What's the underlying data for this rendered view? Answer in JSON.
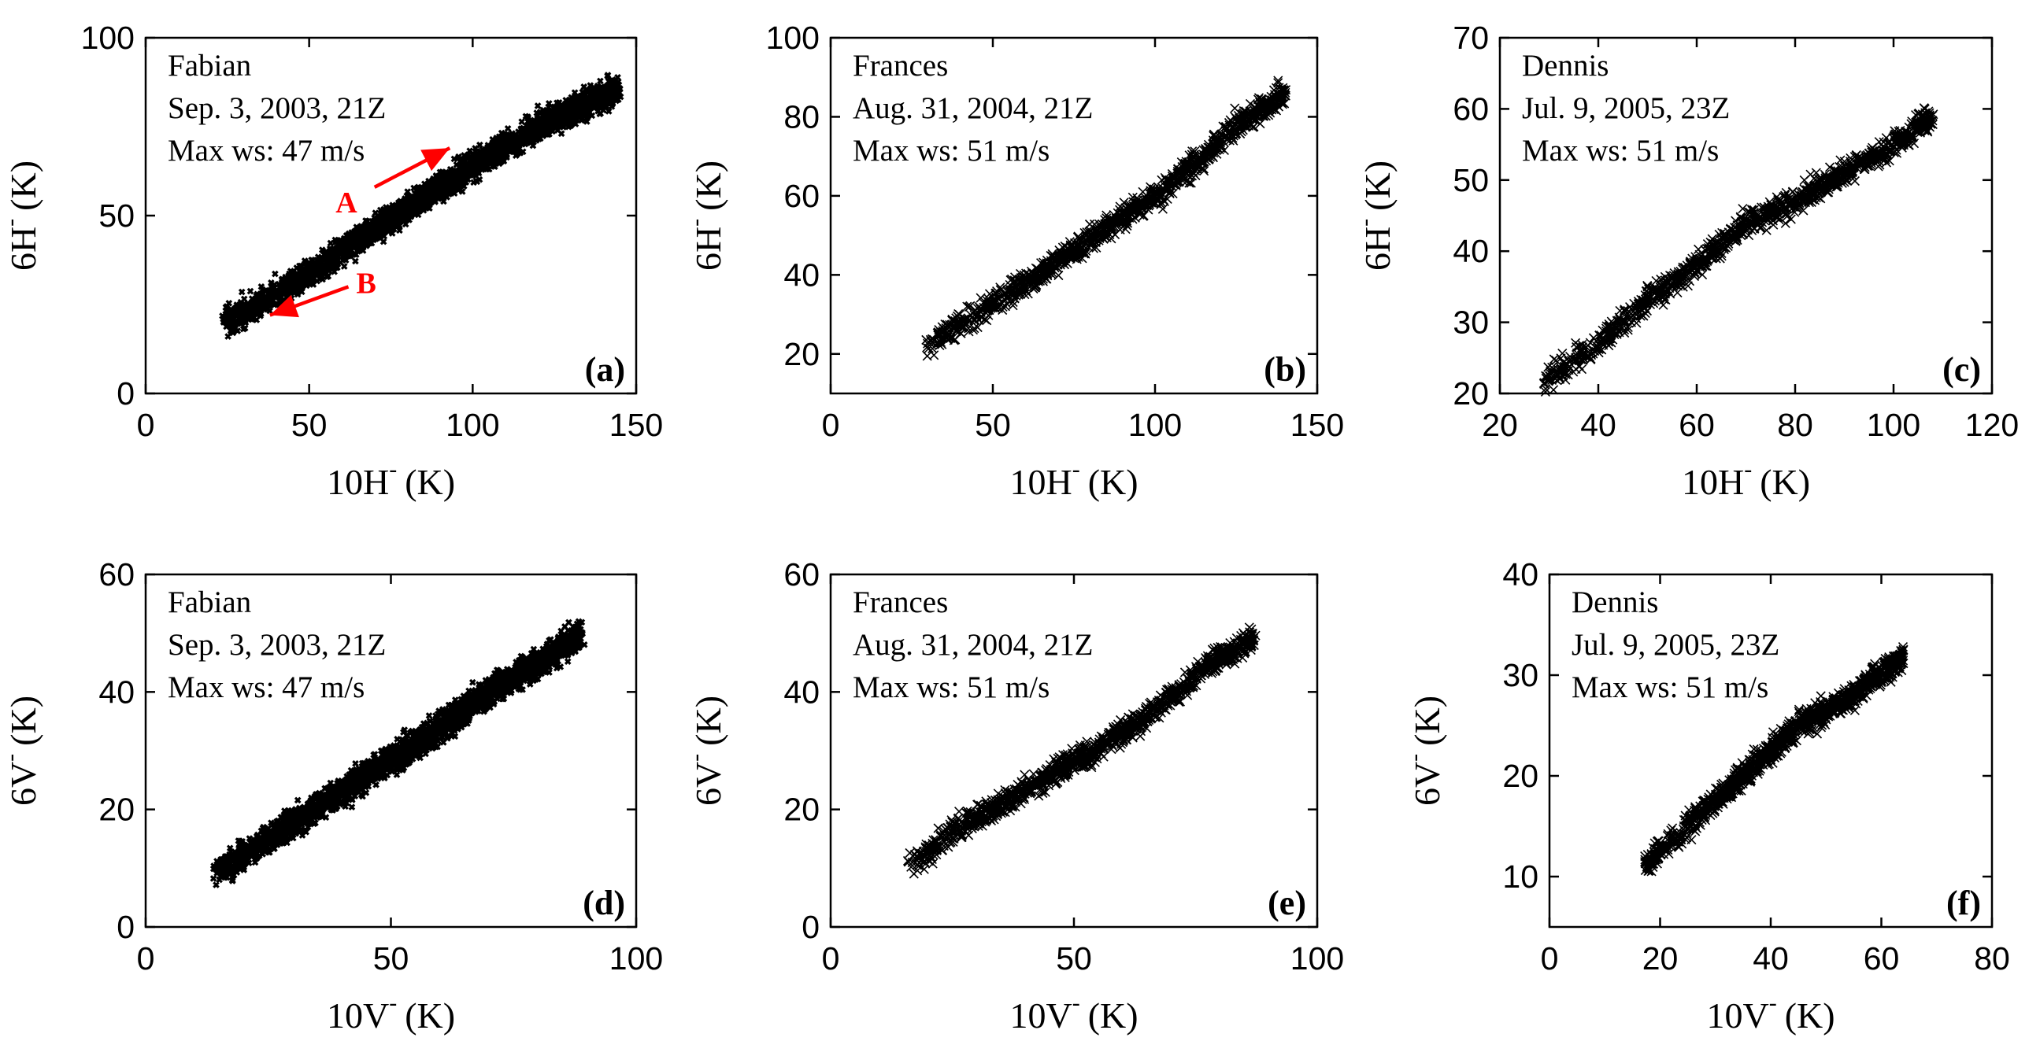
{
  "chart_data": [
    {
      "type": "scatter",
      "panel_label": "(a)",
      "storm": "Fabian",
      "date": "Sep. 3, 2003, 21Z",
      "max_ws": "Max ws: 47 m/s",
      "xlabel": "10H",
      "ylabel": "6H",
      "unit": "(K)",
      "marker": "dense",
      "xlim": [
        0,
        150
      ],
      "ylim": [
        0,
        100
      ],
      "xticks": [
        0,
        50,
        100,
        150
      ],
      "yticks": [
        0,
        50,
        100
      ],
      "trend": {
        "x": [
          24,
          40,
          60,
          80,
          100,
          120,
          145
        ],
        "y": [
          20,
          28,
          40,
          52,
          64,
          75,
          86
        ]
      },
      "annotations": [
        {
          "text": "A",
          "from": [
            70,
            58
          ],
          "to": [
            93,
            69
          ]
        },
        {
          "text": "B",
          "from": [
            62,
            30
          ],
          "to": [
            38,
            22
          ]
        }
      ]
    },
    {
      "type": "scatter",
      "panel_label": "(b)",
      "storm": "Frances",
      "date": "Aug. 31, 2004, 21Z",
      "max_ws": "Max ws: 51 m/s",
      "xlabel": "10H",
      "ylabel": "6H",
      "unit": "(K)",
      "marker": "x",
      "xlim": [
        0,
        150
      ],
      "ylim": [
        10,
        100
      ],
      "xticks": [
        0,
        50,
        100,
        150
      ],
      "yticks": [
        20,
        40,
        60,
        80,
        100
      ],
      "trend": {
        "x": [
          29,
          45,
          60,
          80,
          100,
          115,
          125,
          140
        ],
        "y": [
          22,
          30,
          38,
          49,
          60,
          70,
          78,
          86
        ]
      }
    },
    {
      "type": "scatter",
      "panel_label": "(c)",
      "storm": "Dennis",
      "date": "Jul. 9, 2005, 23Z",
      "max_ws": "Max ws: 51 m/s",
      "xlabel": "10H",
      "ylabel": "6H",
      "unit": "(K)",
      "marker": "x",
      "xlim": [
        20,
        120
      ],
      "ylim": [
        20,
        70
      ],
      "xticks": [
        20,
        40,
        60,
        80,
        100,
        120
      ],
      "yticks": [
        20,
        30,
        40,
        50,
        60,
        70
      ],
      "trend": {
        "x": [
          29,
          40,
          50,
          60,
          70,
          80,
          90,
          100,
          108
        ],
        "y": [
          22,
          27,
          33,
          38,
          44,
          47,
          51,
          55,
          59
        ]
      }
    },
    {
      "type": "scatter",
      "panel_label": "(d)",
      "storm": "Fabian",
      "date": "Sep. 3, 2003, 21Z",
      "max_ws": "Max ws: 47 m/s",
      "xlabel": "10V",
      "ylabel": "6V",
      "unit": "(K)",
      "marker": "dense",
      "xlim": [
        0,
        100
      ],
      "ylim": [
        0,
        60
      ],
      "xticks": [
        0,
        50,
        100
      ],
      "yticks": [
        0,
        20,
        40,
        60
      ],
      "trend": {
        "x": [
          14,
          25,
          40,
          55,
          70,
          80,
          89
        ],
        "y": [
          9,
          15,
          23,
          31,
          40,
          45,
          50
        ]
      }
    },
    {
      "type": "scatter",
      "panel_label": "(e)",
      "storm": "Frances",
      "date": "Aug. 31, 2004, 21Z",
      "max_ws": "Max ws: 51 m/s",
      "xlabel": "10V",
      "ylabel": "6V",
      "unit": "(K)",
      "marker": "x",
      "xlim": [
        0,
        100
      ],
      "ylim": [
        0,
        60
      ],
      "xticks": [
        0,
        50,
        100
      ],
      "yticks": [
        0,
        20,
        40,
        60
      ],
      "trend": {
        "x": [
          16,
          25,
          35,
          50,
          60,
          70,
          78,
          87
        ],
        "y": [
          10,
          16,
          21,
          28,
          33,
          39,
          45,
          49
        ]
      }
    },
    {
      "type": "scatter",
      "panel_label": "(f)",
      "storm": "Dennis",
      "date": "Jul. 9, 2005, 23Z",
      "max_ws": "Max ws: 51 m/s",
      "xlabel": "10V",
      "ylabel": "6V",
      "unit": "(K)",
      "marker": "x",
      "xlim": [
        0,
        80
      ],
      "ylim": [
        5,
        40
      ],
      "xticks": [
        0,
        20,
        40,
        60,
        80
      ],
      "yticks": [
        10,
        20,
        30,
        40
      ],
      "trend": {
        "x": [
          17,
          25,
          35,
          45,
          55,
          64
        ],
        "y": [
          11,
          15,
          20,
          25,
          28,
          32
        ]
      }
    }
  ]
}
